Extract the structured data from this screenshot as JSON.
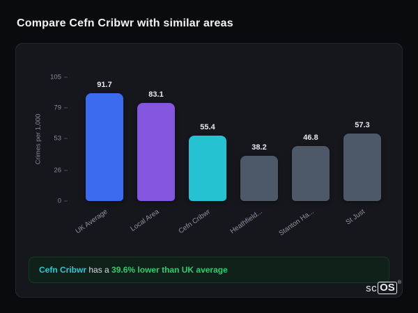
{
  "page_title": "Compare Cefn Cribwr with similar areas",
  "chart_data": {
    "type": "bar",
    "title": "",
    "xlabel": "",
    "ylabel": "Crimes per 1,000",
    "ylim": [
      0,
      105
    ],
    "yticks": [
      105,
      79,
      53,
      26,
      0
    ],
    "grid": false,
    "legend": false,
    "categories": [
      "UK Average",
      "Local Area",
      "Cefn Cribwr",
      "Heathfield...",
      "Stanton Ha...",
      "St Just"
    ],
    "values": [
      91.7,
      83.1,
      55.4,
      38.2,
      46.8,
      57.3
    ],
    "bar_colors": [
      "#3b6cf0",
      "#8456e0",
      "#25c2d4",
      "#4d5968",
      "#4d5968",
      "#4d5968"
    ]
  },
  "note": {
    "area": "Cefn Cribwr",
    "middle": " has a ",
    "highlight": "39.6% lower than UK average"
  },
  "brand": {
    "prefix": "sc",
    "suffix": "OS",
    "reg": "®"
  }
}
